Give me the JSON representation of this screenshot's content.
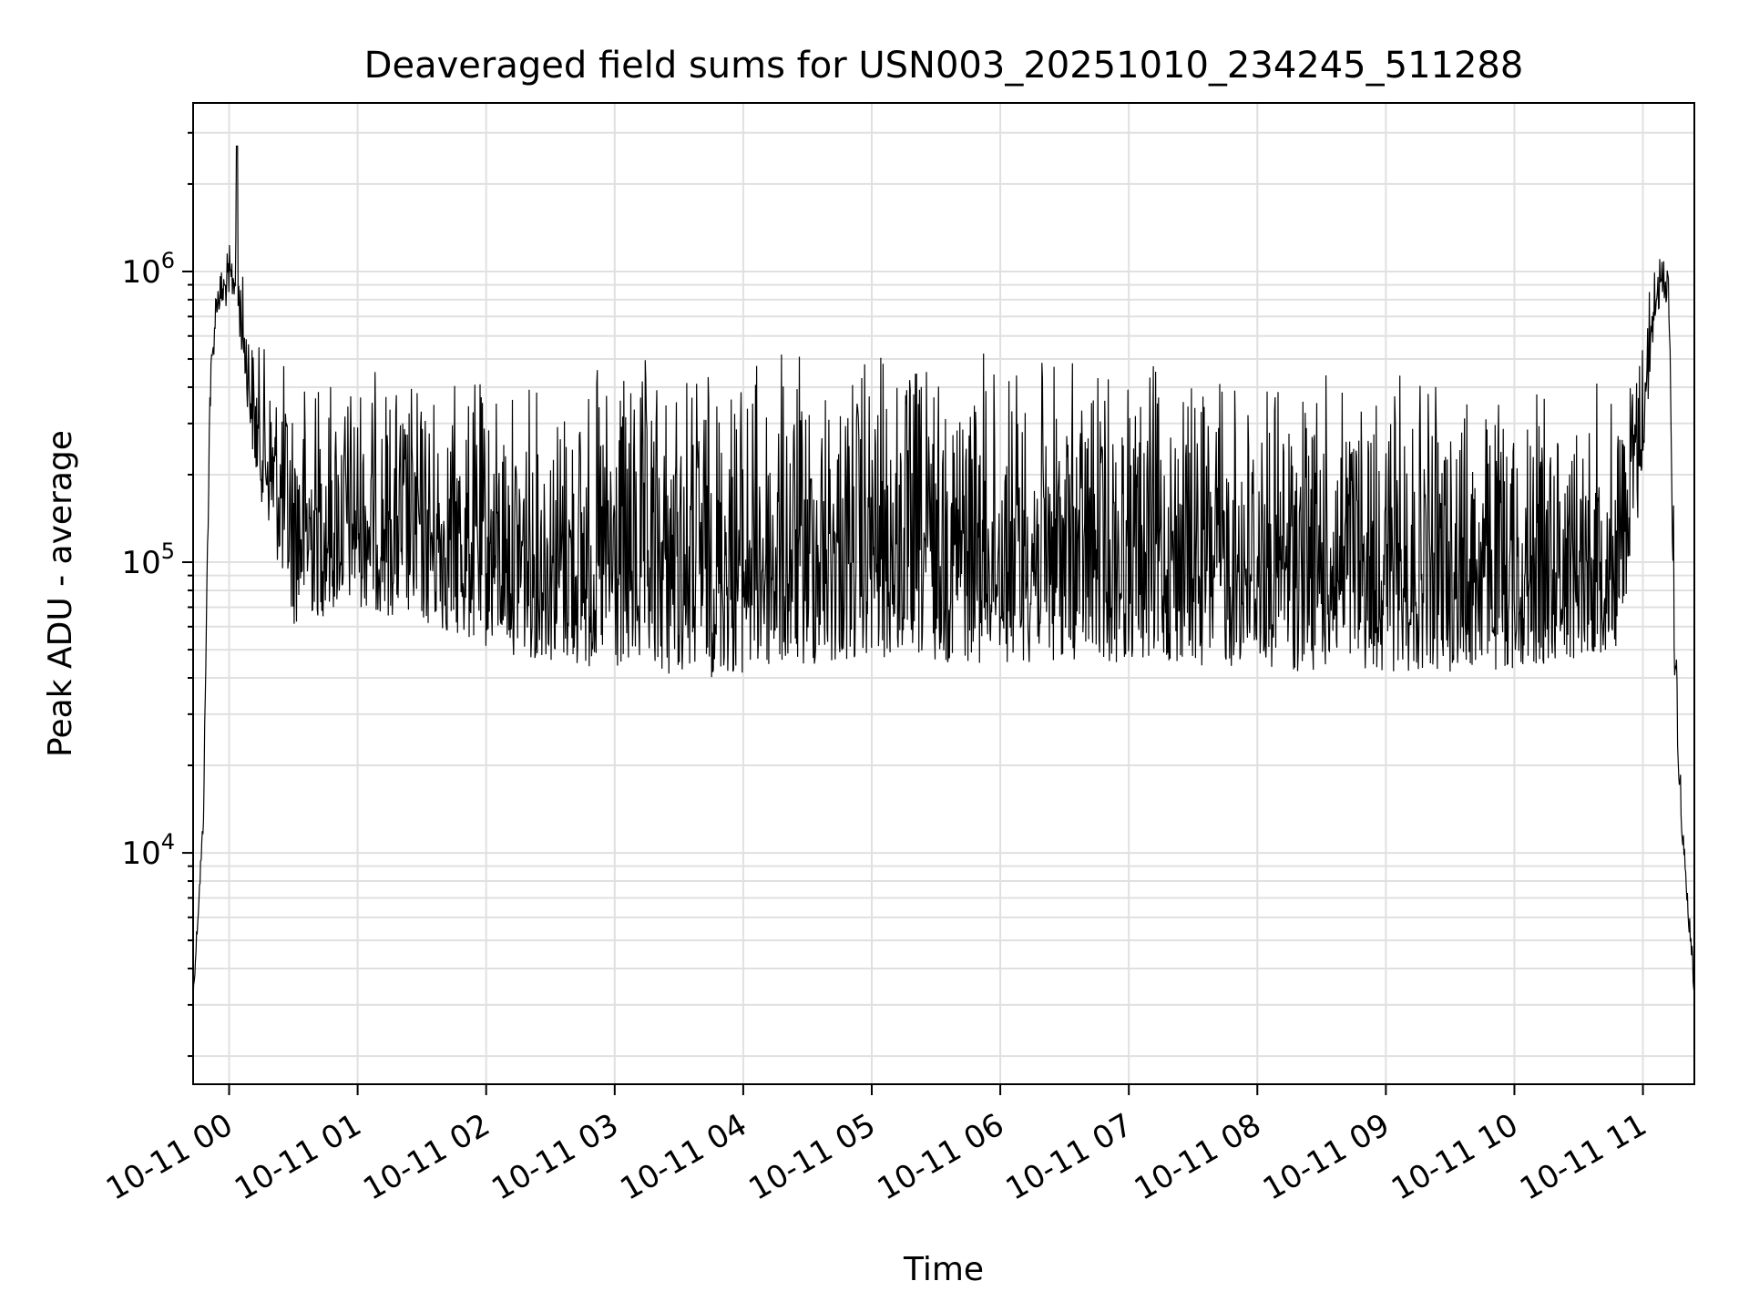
{
  "chart_data": {
    "type": "line",
    "title": "Deaveraged field sums for USN003_20251010_234245_511288",
    "xlabel": "Time",
    "ylabel": "Peak ADU - average",
    "yscale": "log",
    "ylim": [
      1600,
      3800000
    ],
    "xlim_hours": [
      -0.28,
      11.4
    ],
    "grid": true,
    "x_tick_labels": [
      {
        "hour": 0,
        "label": "10-11 00"
      },
      {
        "hour": 1,
        "label": "10-11 01"
      },
      {
        "hour": 2,
        "label": "10-11 02"
      },
      {
        "hour": 3,
        "label": "10-11 03"
      },
      {
        "hour": 4,
        "label": "10-11 04"
      },
      {
        "hour": 5,
        "label": "10-11 05"
      },
      {
        "hour": 6,
        "label": "10-11 06"
      },
      {
        "hour": 7,
        "label": "10-11 07"
      },
      {
        "hour": 8,
        "label": "10-11 08"
      },
      {
        "hour": 9,
        "label": "10-11 09"
      },
      {
        "hour": 10,
        "label": "10-11 10"
      },
      {
        "hour": 11,
        "label": "10-11 11"
      }
    ],
    "y_tick_labels": [
      {
        "value": 10000,
        "base": "10",
        "exp": "4"
      },
      {
        "value": 100000,
        "base": "10",
        "exp": "5"
      },
      {
        "value": 1000000,
        "base": "10",
        "exp": "6"
      }
    ],
    "series": [
      {
        "name": "deaveraged field sums",
        "color": "#000000",
        "envelope_hours": [
          -0.28,
          -0.2,
          -0.15,
          -0.1,
          0.05,
          0.2,
          0.5,
          1.0,
          1.5,
          2.0,
          2.5,
          3.0,
          4.0,
          5.0,
          6.0,
          7.0,
          8.0,
          9.0,
          10.0,
          10.8,
          10.95,
          11.1,
          11.2,
          11.25,
          11.3,
          11.4
        ],
        "envelope_low": [
          3000,
          12000,
          300000,
          700000,
          800000,
          200000,
          60000,
          70000,
          60000,
          50000,
          45000,
          40000,
          40000,
          45000,
          45000,
          45000,
          42000,
          42000,
          42000,
          50000,
          120000,
          700000,
          800000,
          30000,
          12000,
          3000
        ],
        "envelope_high": [
          3500,
          15000,
          500000,
          1000000,
          1400000,
          600000,
          500000,
          500000,
          450000,
          450000,
          450000,
          500000,
          550000,
          550000,
          550000,
          500000,
          480000,
          450000,
          400000,
          450000,
          600000,
          1200000,
          1250000,
          100000,
          15000,
          4000
        ],
        "peak": {
          "hour": 0.06,
          "value": 2700000
        }
      }
    ]
  }
}
